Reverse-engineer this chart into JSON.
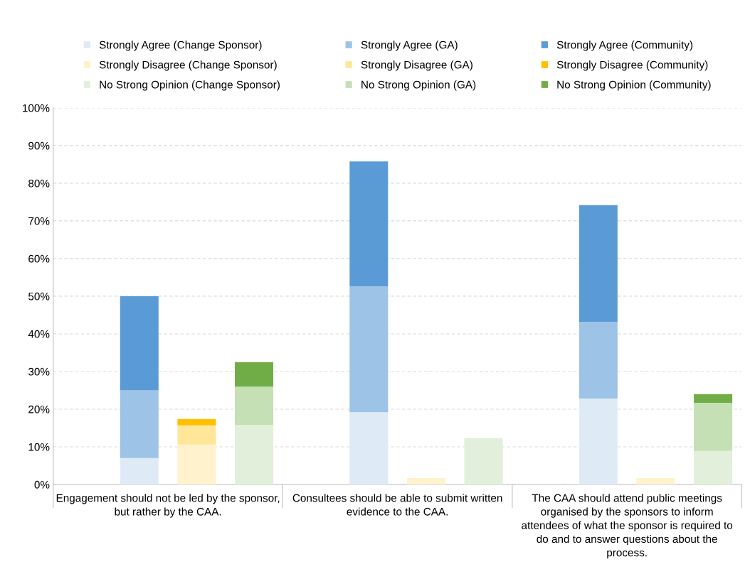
{
  "chart_data": {
    "type": "bar",
    "categories": [
      "Engagement should not be led by the sponsor, but rather by the CAA.",
      "Consultees should be able to submit written evidence to the CAA.",
      "The CAA should attend public meetings organised by the sponsors to inform attendees of what the sponsor is required to do and to answer questions about the process."
    ],
    "series": [
      {
        "name": "Strongly Agree (Change Sponsor)",
        "color": "#deebf7",
        "values": [
          7.0,
          19.2,
          22.8
        ],
        "base": [
          0,
          0,
          0
        ]
      },
      {
        "name": "Strongly Agree (GA)",
        "color": "#9dc3e6",
        "values": [
          18.0,
          33.4,
          20.4
        ],
        "base": [
          7.0,
          19.2,
          22.8
        ]
      },
      {
        "name": "Strongly Agree (Community)",
        "color": "#5b9bd5",
        "values": [
          25.0,
          33.2,
          31.0
        ],
        "base": [
          25.0,
          52.6,
          43.2
        ]
      },
      {
        "name": "Strongly Disagree (Change Sponsor)",
        "color": "#fff2cc",
        "values": [
          10.6,
          1.7,
          1.7
        ],
        "base": [
          0,
          0,
          0
        ]
      },
      {
        "name": "Strongly Disagree (GA)",
        "color": "#ffe699",
        "values": [
          5.1,
          null,
          null
        ],
        "base": [
          10.6,
          null,
          null
        ]
      },
      {
        "name": "Strongly Disagree (Community)",
        "color": "#ffc000",
        "values": [
          1.7,
          null,
          null
        ],
        "base": [
          15.7,
          null,
          null
        ]
      },
      {
        "name": "No Strong Opinion (Change Sponsor)",
        "color": "#e2efda",
        "values": [
          15.8,
          12.3,
          8.9
        ],
        "base": [
          0,
          0,
          0
        ]
      },
      {
        "name": "No Strong Opinion (GA)",
        "color": "#c5e0b4",
        "values": [
          10.2,
          null,
          12.8
        ],
        "base": [
          15.8,
          null,
          8.9
        ]
      },
      {
        "name": "No Strong Opinion (Community)",
        "color": "#70ad47",
        "values": [
          6.5,
          null,
          2.3
        ],
        "base": [
          26.0,
          null,
          21.7
        ]
      }
    ],
    "ylim": [
      0,
      100
    ],
    "yticks": [
      {
        "value": 0,
        "label": "0%"
      },
      {
        "value": 10,
        "label": "10%"
      },
      {
        "value": 20,
        "label": "20%"
      },
      {
        "value": 30,
        "label": "30%"
      },
      {
        "value": 40,
        "label": "40%"
      },
      {
        "value": 50,
        "label": "50%"
      },
      {
        "value": 60,
        "label": "60%"
      },
      {
        "value": 70,
        "label": "70%"
      },
      {
        "value": 80,
        "label": "80%"
      },
      {
        "value": 90,
        "label": "90%"
      },
      {
        "value": 100,
        "label": "100%"
      }
    ],
    "grid": "y",
    "legend": "top"
  }
}
